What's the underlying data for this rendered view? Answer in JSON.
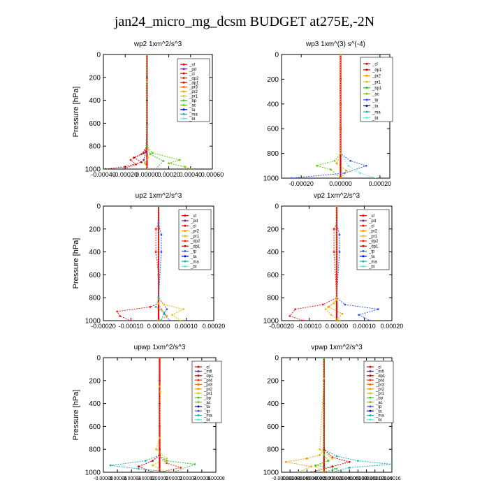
{
  "title": "jan24_micro_mg_dcsm  BUDGET at275E,-2N",
  "colors": {
    "_sf": "#ff0000",
    "_pd": "#7a1fa2",
    "_cl": "#e60000",
    "_dp2": "#ff1a1a",
    "_dp1": "#cc0000",
    "_pr4": "#ff3300",
    "_pr3": "#ff6600",
    "_pr2": "#ff9900",
    "_pr1": "#e6c200",
    "_bp": "#33cc33",
    "_bp1": "#2eb82e",
    "_ac": "#66cc00",
    "_tp": "#3355ff",
    "_ta": "#0000cc",
    "_ma": "#1ab2b2",
    "_bt": "#66e6e6",
    "_mfl": "#7a1fa2"
  },
  "chart_data": [
    {
      "type": "line",
      "title": "wp2   1xm^2/s^3",
      "ylabel": "Pressure [hPa]",
      "xlim": [
        -0.0004,
        0.0006
      ],
      "ylim": [
        1000,
        0
      ],
      "xticks": [
        "-0.00040",
        "-0.00020",
        "0.00000",
        "0.00020",
        "0.00040",
        "0.00060"
      ],
      "yticks": [
        "0",
        "200",
        "400",
        "600",
        "800",
        "1000"
      ],
      "legend": [
        "_sf",
        "_pd",
        "_cl",
        "_dp2",
        "_dp1",
        "_pr3",
        "_pr2",
        "_pr1",
        "_bp",
        "_ac",
        "_ta",
        "_ma",
        "_bt"
      ],
      "series": [
        {
          "name": "_sf",
          "x": [
            0,
            0,
            0,
            0,
            0,
            0
          ],
          "y": [
            0,
            200,
            400,
            600,
            800,
            1000
          ]
        },
        {
          "name": "_pd",
          "x": [
            0,
            0,
            0,
            0,
            -1e-05,
            -3e-05,
            1e-05
          ],
          "y": [
            0,
            200,
            400,
            600,
            850,
            920,
            1000
          ]
        },
        {
          "name": "_dp1",
          "x": [
            0,
            0,
            0,
            -3e-05,
            -0.00012,
            -5e-05,
            -0.0002,
            -0.00038
          ],
          "y": [
            0,
            400,
            800,
            860,
            900,
            940,
            980,
            1000
          ]
        },
        {
          "name": "_dp2",
          "x": [
            0,
            0,
            -5e-05,
            -0.00015,
            -0.0001,
            -0.00022
          ],
          "y": [
            0,
            800,
            870,
            920,
            960,
            1000
          ]
        },
        {
          "name": "_pr1",
          "x": [
            0,
            0,
            0,
            1e-05,
            -2e-05,
            1e-05
          ],
          "y": [
            0,
            240,
            800,
            900,
            950,
            1000
          ]
        },
        {
          "name": "_ac",
          "x": [
            0,
            0,
            5e-05,
            0.0003,
            0.0002,
            0.00035,
            0.0004
          ],
          "y": [
            0,
            800,
            860,
            920,
            950,
            980,
            1000
          ]
        },
        {
          "name": "_bp",
          "x": [
            0,
            0,
            3e-05,
            0.00015,
            8e-05
          ],
          "y": [
            0,
            800,
            870,
            930,
            1000
          ]
        }
      ]
    },
    {
      "type": "line",
      "title": "wp3   1xm^(3) s^(-4)",
      "ylabel": "",
      "xlim": [
        -0.0003,
        0.00025
      ],
      "ylim": [
        1000,
        0
      ],
      "xticks": [
        "-0.00020",
        "0.00000",
        "0.00020"
      ],
      "yticks": [
        "0",
        "200",
        "400",
        "600",
        "800",
        "1000"
      ],
      "legend": [
        "_cl",
        "_dp1",
        "_pr2",
        "_pr1",
        "_bp1",
        "_ac",
        "_tp",
        "_ta",
        "_ma",
        "_bt"
      ],
      "series": [
        {
          "name": "_cl",
          "x": [
            0,
            0,
            0,
            0,
            0,
            0
          ],
          "y": [
            0,
            200,
            400,
            600,
            800,
            1000
          ]
        },
        {
          "name": "_ac",
          "x": [
            0,
            0,
            -3e-05,
            -0.00012,
            -5e-05,
            0.0
          ],
          "y": [
            0,
            800,
            860,
            900,
            930,
            1000
          ]
        },
        {
          "name": "_tp",
          "x": [
            0,
            0,
            5e-05,
            0.00013,
            2e-05,
            -0.00025
          ],
          "y": [
            0,
            800,
            860,
            900,
            960,
            1000
          ]
        },
        {
          "name": "_bt",
          "x": [
            0,
            0,
            4e-05,
            0.0001,
            0.00018
          ],
          "y": [
            0,
            800,
            900,
            960,
            1000
          ]
        },
        {
          "name": "_pr2",
          "x": [
            0,
            0,
            -2e-05,
            3e-05,
            0.0
          ],
          "y": [
            0,
            800,
            880,
            940,
            1000
          ]
        }
      ]
    },
    {
      "type": "line",
      "title": "up2   1xm^2/s^3",
      "ylabel": "Pressure [hPa]",
      "xlim": [
        -0.0002,
        0.0002
      ],
      "ylim": [
        1000,
        0
      ],
      "xticks": [
        "-0.00020",
        "-0.00010",
        "0.00000",
        "0.00010",
        "0.00020"
      ],
      "yticks": [
        "0",
        "200",
        "400",
        "600",
        "800",
        "1000"
      ],
      "legend": [
        "_sf",
        "_pd",
        "_cl",
        "_pr2",
        "_pr1",
        "_dp2",
        "_dp1",
        "_tp",
        "_ta",
        "_ma",
        "_bt"
      ],
      "series": [
        {
          "name": "_sf",
          "x": [
            0,
            0,
            0,
            0,
            0,
            0
          ],
          "y": [
            0,
            200,
            400,
            600,
            800,
            1000
          ]
        },
        {
          "name": "_dp2",
          "x": [
            0,
            0,
            -1e-05,
            -1e-05,
            0,
            0,
            -3e-05,
            -0.00015,
            -0.00014,
            -0.0001
          ],
          "y": [
            0,
            150,
            200,
            400,
            600,
            850,
            880,
            920,
            960,
            1000
          ]
        },
        {
          "name": "_tp",
          "x": [
            0,
            0,
            1e-05,
            1e-05,
            0,
            3e-05,
            2e-05,
            4e-05
          ],
          "y": [
            0,
            150,
            250,
            400,
            800,
            900,
            940,
            1000
          ]
        },
        {
          "name": "_pr1",
          "x": [
            0,
            0,
            2e-05,
            9e-05,
            5e-05,
            8e-05
          ],
          "y": [
            0,
            800,
            860,
            900,
            950,
            1000
          ]
        },
        {
          "name": "_pr2",
          "x": [
            0,
            0,
            1e-05,
            3e-05,
            0.0
          ],
          "y": [
            0,
            850,
            900,
            960,
            1000
          ]
        },
        {
          "name": "_ma",
          "x": [
            0,
            0,
            -1e-05,
            2e-05,
            1e-05
          ],
          "y": [
            0,
            800,
            880,
            930,
            1000
          ]
        }
      ]
    },
    {
      "type": "line",
      "title": "vp2   1xm^2/s^3",
      "ylabel": "",
      "xlim": [
        -0.0002,
        0.0002
      ],
      "ylim": [
        1000,
        0
      ],
      "xticks": [
        "-0.00020",
        "-0.00010",
        "0.00000",
        "0.00010",
        "0.00020"
      ],
      "yticks": [
        "0",
        "200",
        "400",
        "600",
        "800",
        "1000"
      ],
      "legend": [
        "_sf",
        "_pd",
        "_cl",
        "_pr2",
        "_pr1",
        "_dp2",
        "_dp1",
        "_tp",
        "_ta",
        "_ma",
        "_bt"
      ],
      "series": [
        {
          "name": "_sf",
          "x": [
            0,
            0,
            0,
            0,
            0,
            0
          ],
          "y": [
            0,
            200,
            400,
            600,
            800,
            1000
          ]
        },
        {
          "name": "_dp2",
          "x": [
            0,
            0,
            -1e-05,
            -1e-05,
            0,
            -5e-05,
            -0.00015,
            -0.00017,
            -0.00012
          ],
          "y": [
            0,
            150,
            200,
            400,
            800,
            860,
            900,
            960,
            1000
          ]
        },
        {
          "name": "_tp",
          "x": [
            0,
            0,
            1e-05,
            1e-05,
            0,
            3e-05,
            0.00015,
            8e-05,
            0.00012
          ],
          "y": [
            0,
            150,
            250,
            400,
            800,
            860,
            900,
            950,
            1000
          ]
        },
        {
          "name": "_pr1",
          "x": [
            0,
            0,
            -1e-05,
            -4e-05,
            -2e-05,
            1e-05
          ],
          "y": [
            0,
            800,
            850,
            900,
            950,
            1000
          ]
        },
        {
          "name": "_pr2",
          "x": [
            0,
            0,
            -3e-05,
            2e-05,
            0.0
          ],
          "y": [
            0,
            820,
            880,
            940,
            1000
          ]
        }
      ]
    },
    {
      "type": "line",
      "title": "upwp   1xm^2/s^3",
      "ylabel": "Pressure [hPa]",
      "xlim": [
        -8e-05,
        8e-05
      ],
      "ylim": [
        1000,
        0
      ],
      "xticks": [
        "-0.00008",
        "-0.00006",
        "-0.00004",
        "-0.00002",
        "0.00000",
        "0.00002",
        "0.00004",
        "0.00006",
        "0.00008"
      ],
      "yticks": [
        "0",
        "200",
        "400",
        "600",
        "800",
        "1000"
      ],
      "legend": [
        "_cl",
        "_mfl",
        "_dp1",
        "_pr4",
        "_pr3",
        "_pr2",
        "_pr1",
        "_bp",
        "_ac",
        "_ta",
        "_tp",
        "_ma",
        "_bt"
      ],
      "series": [
        {
          "name": "_cl",
          "x": [
            0,
            0,
            0,
            0,
            0,
            0
          ],
          "y": [
            0,
            200,
            400,
            600,
            800,
            1000
          ]
        },
        {
          "name": "_pr1",
          "x": [
            0,
            0,
            1e-06,
            0,
            -5e-06,
            1e-05,
            -1e-05,
            1e-05
          ],
          "y": [
            0,
            250,
            300,
            700,
            800,
            880,
            940,
            1000
          ]
        },
        {
          "name": "_bp",
          "x": [
            0,
            0,
            1e-05,
            5e-05,
            2e-05
          ],
          "y": [
            0,
            850,
            900,
            930,
            1000
          ]
        },
        {
          "name": "_ma",
          "x": [
            0,
            0,
            -2e-05,
            -7e-05,
            -3e-05,
            2e-05
          ],
          "y": [
            0,
            850,
            900,
            940,
            970,
            1000
          ]
        },
        {
          "name": "_dp1",
          "x": [
            0,
            0,
            -1e-05,
            -3e-05,
            -1e-05
          ],
          "y": [
            0,
            850,
            900,
            950,
            1000
          ]
        },
        {
          "name": "_pr4",
          "x": [
            0,
            0,
            1e-05,
            3e-05,
            0.0
          ],
          "y": [
            0,
            860,
            920,
            960,
            1000
          ]
        }
      ]
    },
    {
      "type": "line",
      "title": "vpwp   1xm^2/s^3",
      "ylabel": "",
      "xlim": [
        -0.0001,
        0.00016
      ],
      "ylim": [
        1000,
        0
      ],
      "xticks": [
        "-0.00010",
        "-0.00008",
        "-0.00006",
        "-0.00004",
        "-0.00002",
        "0.00000",
        "0.00002",
        "0.00004",
        "0.00006",
        "0.00008",
        "0.00010",
        "0.00012",
        "0.00014",
        "0.00016"
      ],
      "yticks": [
        "0",
        "200",
        "400",
        "600",
        "800",
        "1000"
      ],
      "legend": [
        "_cl",
        "_mfl",
        "_dp1",
        "_pr4",
        "_pr3",
        "_pr2",
        "_pr1",
        "_bp",
        "_ac",
        "_tp",
        "_ta",
        "_ma",
        "_bt"
      ],
      "series": [
        {
          "name": "_cl",
          "x": [
            0,
            0,
            0,
            0,
            0,
            0
          ],
          "y": [
            0,
            200,
            400,
            600,
            800,
            1000
          ]
        },
        {
          "name": "_pr2",
          "x": [
            0,
            0,
            -1e-05,
            -4e-05,
            -9e-05,
            -3e-05,
            -6e-05
          ],
          "y": [
            0,
            800,
            850,
            880,
            910,
            950,
            1000
          ]
        },
        {
          "name": "_ma",
          "x": [
            0,
            0,
            3e-05,
            8e-05,
            0.00016,
            6e-05,
            2e-05
          ],
          "y": [
            0,
            800,
            860,
            900,
            930,
            960,
            1000
          ]
        },
        {
          "name": "_dp1",
          "x": [
            0,
            0,
            2e-05,
            6e-05,
            2e-05,
            -3e-05
          ],
          "y": [
            0,
            800,
            870,
            910,
            950,
            1000
          ]
        },
        {
          "name": "_pr1",
          "x": [
            0,
            0,
            -1e-05,
            2e-05,
            -2e-05,
            1e-05
          ],
          "y": [
            0,
            180,
            800,
            880,
            950,
            1000
          ]
        },
        {
          "name": "_bp",
          "x": [
            0,
            0,
            1e-05,
            -2e-05,
            3e-05,
            0.0
          ],
          "y": [
            0,
            850,
            900,
            940,
            970,
            1000
          ]
        }
      ]
    }
  ]
}
